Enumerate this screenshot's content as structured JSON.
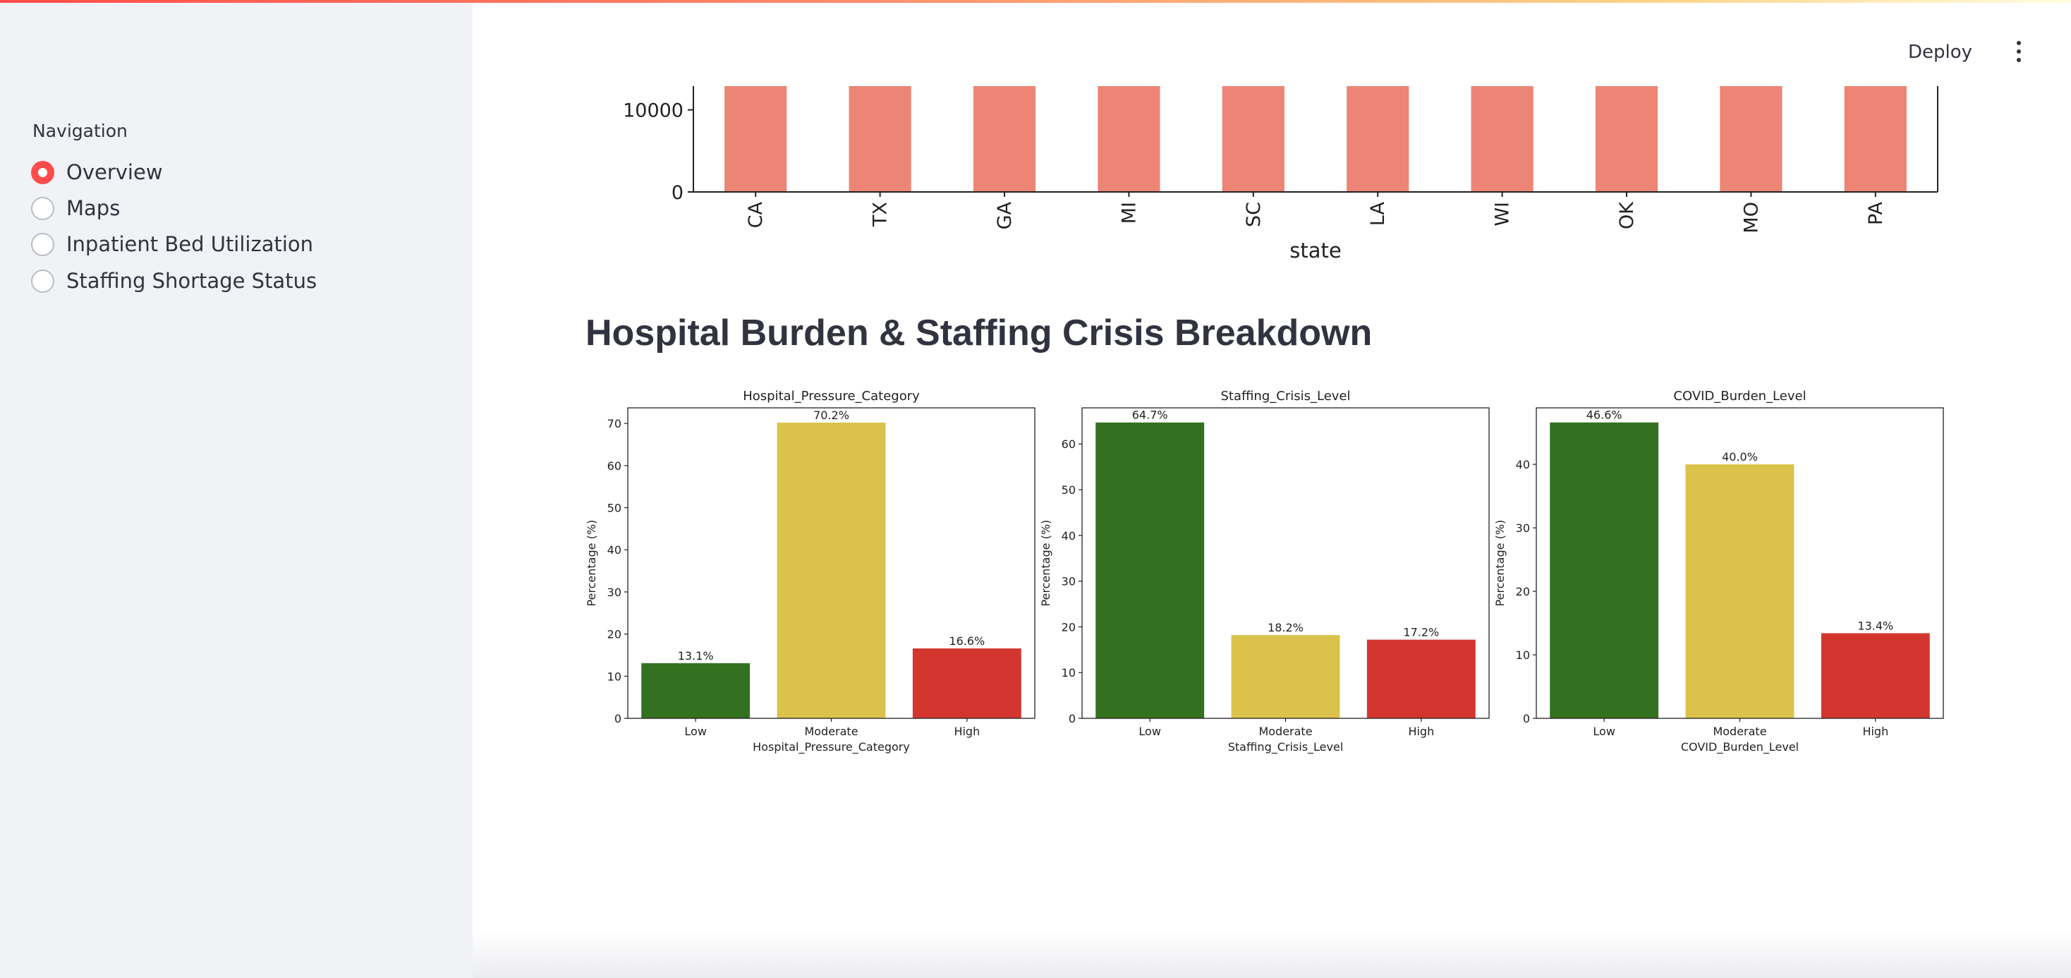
{
  "sidebar": {
    "nav_label": "Navigation",
    "items": [
      {
        "label": "Overview",
        "selected": true
      },
      {
        "label": "Maps",
        "selected": false
      },
      {
        "label": "Inpatient Bed Utilization",
        "selected": false
      },
      {
        "label": "Staffing Shortage Status",
        "selected": false
      }
    ]
  },
  "header": {
    "deploy_label": "Deploy",
    "menu_icon": "kebab-menu-icon"
  },
  "colors": {
    "accent": "#ff4b4b",
    "sidebar_bg": "#f0f2f6",
    "state_bar": "#ec8576",
    "low": "#337020",
    "moderate": "#dbc24a",
    "high": "#d3362f"
  },
  "section_title": "Hospital Burden & Staffing Crisis Breakdown",
  "chart_data": [
    {
      "type": "bar",
      "categories": [
        "CA",
        "TX",
        "GA",
        "MI",
        "SC",
        "LA",
        "WI",
        "OK",
        "MO",
        "PA"
      ],
      "xlabel": "state",
      "ytick_labels": [
        "0",
        "10000"
      ],
      "yticks": [
        0,
        10000
      ],
      "visible_ylim": [
        0,
        12900
      ],
      "note_clipped": true,
      "values": [
        12900,
        12900,
        12900,
        12900,
        12900,
        12900,
        12900,
        12900,
        12900,
        12900
      ]
    },
    {
      "type": "bar",
      "title": "Hospital_Pressure_Category",
      "xlabel": "Hospital_Pressure_Category",
      "ylabel": "Percentage (%)",
      "categories": [
        "Low",
        "Moderate",
        "High"
      ],
      "values": [
        13.1,
        70.2,
        16.6
      ],
      "value_labels": [
        "13.1%",
        "70.2%",
        "16.6%"
      ],
      "ylim": [
        0,
        73.7
      ],
      "yticks": [
        0,
        10,
        20,
        30,
        40,
        50,
        60,
        70
      ]
    },
    {
      "type": "bar",
      "title": "Staffing_Crisis_Level",
      "xlabel": "Staffing_Crisis_Level",
      "ylabel": "Percentage (%)",
      "categories": [
        "Low",
        "Moderate",
        "High"
      ],
      "values": [
        64.7,
        18.2,
        17.2
      ],
      "value_labels": [
        "64.7%",
        "18.2%",
        "17.2%"
      ],
      "ylim": [
        0,
        67.9
      ],
      "yticks": [
        0,
        10,
        20,
        30,
        40,
        50,
        60
      ]
    },
    {
      "type": "bar",
      "title": "COVID_Burden_Level",
      "xlabel": "COVID_Burden_Level",
      "ylabel": "Percentage (%)",
      "categories": [
        "Low",
        "Moderate",
        "High"
      ],
      "values": [
        46.6,
        40.0,
        13.4
      ],
      "value_labels": [
        "46.6%",
        "40.0%",
        "13.4%"
      ],
      "ylim": [
        0,
        48.9
      ],
      "yticks": [
        0,
        10,
        20,
        30,
        40
      ]
    }
  ]
}
